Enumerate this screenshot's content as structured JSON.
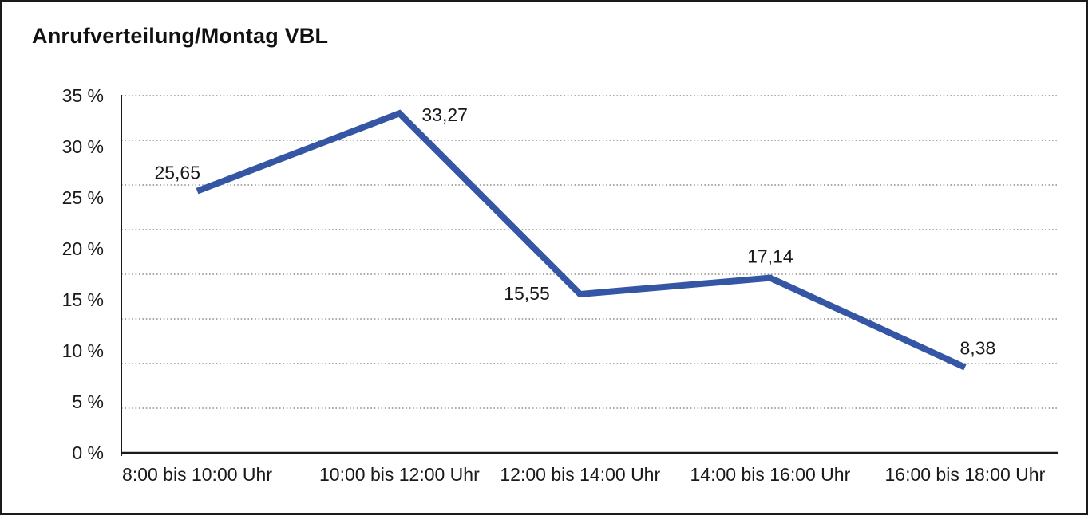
{
  "title": "Anrufverteilung/Montag VBL",
  "colors": {
    "line": "#3556A4",
    "grid": "#777777",
    "axis": "#1a1a1a",
    "text": "#1a1a1a",
    "background": "#ffffff"
  },
  "chart_data": {
    "type": "line",
    "title": "Anrufverteilung/Montag VBL",
    "categories": [
      "8:00 bis 10:00 Uhr",
      "10:00 bis 12:00 Uhr",
      "12:00 bis 14:00 Uhr",
      "14:00 bis 16:00 Uhr",
      "16:00 bis 18:00 Uhr"
    ],
    "values": [
      25.65,
      33.27,
      15.55,
      17.14,
      8.38
    ],
    "point_labels": [
      "25,65",
      "33,27",
      "15,55",
      "17,14",
      "8,38"
    ],
    "xlabel": "",
    "ylabel": "",
    "ylim": [
      0,
      35
    ],
    "ytick_labels": [
      "35 %",
      "30 %",
      "25 %",
      "20 %",
      "15 %",
      "10 %",
      "5 %",
      "0 %"
    ],
    "ytick_values": [
      35,
      30,
      25,
      20,
      15,
      10,
      5,
      0
    ],
    "grid": "horizontal-dotted",
    "grid_divisions": 8,
    "legend": "none"
  }
}
